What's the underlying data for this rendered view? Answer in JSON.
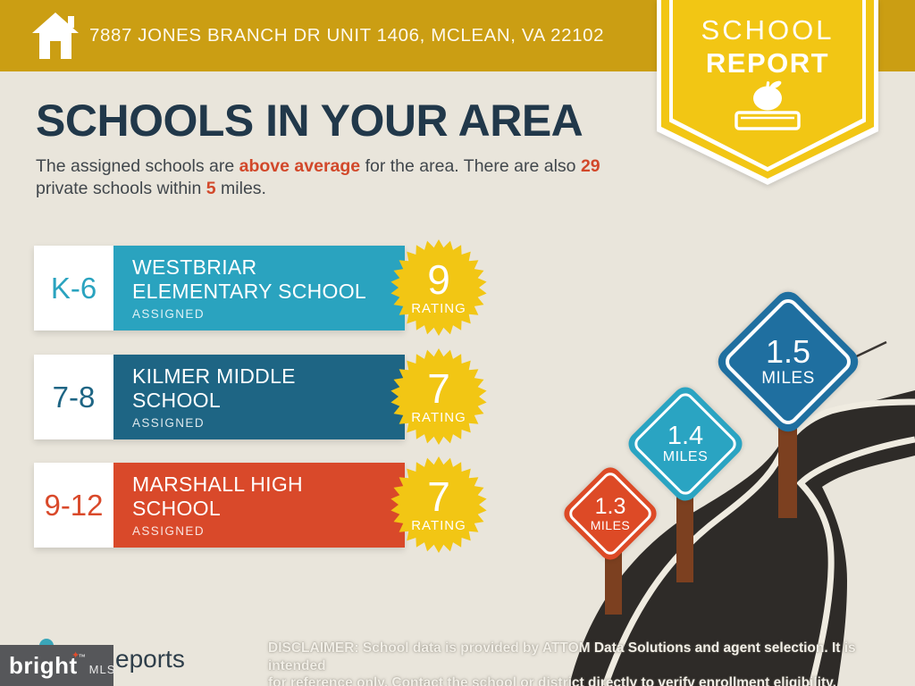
{
  "colors": {
    "banner_gold": "#CB9E13",
    "badge_yellow": "#F2C614",
    "page_bg": "#E9E5DB",
    "heading_navy": "#21384A",
    "body_text": "#41474C",
    "accent_orange": "#D2482A",
    "star_yellow": "#F2C614",
    "road_dark": "#2E2B28",
    "road_line": "#EFEBE0",
    "post_brown": "#7C4020",
    "watermark_gray": "#56575A"
  },
  "banner": {
    "address": "7887 JONES BRANCH DR UNIT 1406, MCLEAN, VA 22102"
  },
  "badge": {
    "line1": "SCHOOL",
    "line2": "REPORT"
  },
  "main": {
    "heading": "SCHOOLS IN YOUR AREA",
    "intro": {
      "t1": "The assigned schools are ",
      "h1": "above average",
      "t2": " for the area. There are also ",
      "h2": "29",
      "t3": " private schools within ",
      "h3": "5",
      "t4": " miles."
    }
  },
  "schools": [
    {
      "grades": "K-6",
      "name_line1": "WESTBRIAR",
      "name_line2": "ELEMENTARY SCHOOL",
      "status": "ASSIGNED",
      "rating": "9",
      "rating_label": "RATING",
      "color": "#2AA3BF"
    },
    {
      "grades": "7-8",
      "name_line1": "KILMER MIDDLE",
      "name_line2": "SCHOOL",
      "status": "ASSIGNED",
      "rating": "7",
      "rating_label": "RATING",
      "color": "#1E6584"
    },
    {
      "grades": "9-12",
      "name_line1": "MARSHALL HIGH",
      "name_line2": "SCHOOL",
      "status": "ASSIGNED",
      "rating": "7",
      "rating_label": "RATING",
      "color": "#D9492A"
    }
  ],
  "distance_signs": [
    {
      "value": "1.3",
      "unit": "MILES",
      "color": "#DD4A26"
    },
    {
      "value": "1.4",
      "unit": "MILES",
      "color": "#2AA4C2"
    },
    {
      "value": "1.5",
      "unit": "MILES",
      "color": "#1F6FA0"
    }
  ],
  "footer": {
    "logo_brand": "bright",
    "logo_tm": "™",
    "logo_suffix": "MLS",
    "partial_text": "eports",
    "disclaimer_bold": "DISCLAIMER:",
    "disclaimer_line1": " School data is provided by ATTOM Data Solutions and agent selection. It is intended",
    "disclaimer_line2": "for reference only. Contact the school or district directly to verify enrollment eligibility."
  }
}
